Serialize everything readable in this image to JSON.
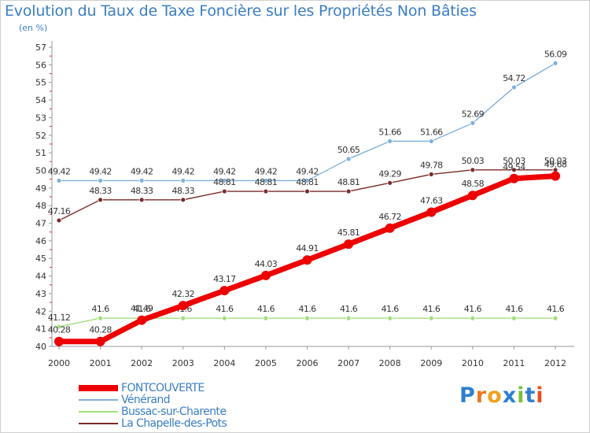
{
  "title": "Evolution du Taux de Taxe Foncière sur les Propriétés Non Bâties",
  "unit": "(en %)",
  "logo": "Proxiti",
  "chart_data": {
    "type": "line",
    "title": "Evolution du Taux de Taxe Foncière sur les Propriétés Non Bâties",
    "ylabel": "(en %)",
    "xlabel": "",
    "x": [
      "2000",
      "2001",
      "2002",
      "2003",
      "2004",
      "2005",
      "2006",
      "2007",
      "2008",
      "2009",
      "2010",
      "2011",
      "2012"
    ],
    "ylim": [
      40,
      57
    ],
    "yticks": [
      40,
      41,
      42,
      43,
      44,
      45,
      46,
      47,
      48,
      49,
      50,
      51,
      52,
      53,
      54,
      55,
      56,
      57
    ],
    "grid": false,
    "legend_position": "bottom-left",
    "series": [
      {
        "name": "FONTCOUVERTE",
        "color": "#ee0000",
        "bold": true,
        "values": [
          40.28,
          40.28,
          41.49,
          42.32,
          43.17,
          44.03,
          44.91,
          45.81,
          46.72,
          47.63,
          48.58,
          49.54,
          49.68
        ],
        "labels": [
          "40.28",
          "40.28",
          "41.49",
          "42.32",
          "43.17",
          "44.03",
          "44.91",
          "45.81",
          "46.72",
          "47.63",
          "48.58",
          "49.54",
          "49.68"
        ]
      },
      {
        "name": "Vénérand",
        "color": "#7fb0de",
        "values": [
          49.42,
          49.42,
          49.42,
          49.42,
          49.42,
          49.42,
          49.42,
          50.65,
          51.66,
          51.66,
          52.69,
          54.72,
          56.09
        ],
        "labels": [
          "49.42",
          "49.42",
          "49.42",
          "49.42",
          "49.42",
          "49.42",
          "49.42",
          "50.65",
          "51.66",
          "51.66",
          "52.69",
          "54.72",
          "56.09"
        ]
      },
      {
        "name": "Bussac-sur-Charente",
        "color": "#a4de7c",
        "values": [
          41.12,
          41.6,
          41.6,
          41.6,
          41.6,
          41.6,
          41.6,
          41.6,
          41.6,
          41.6,
          41.6,
          41.6,
          41.6
        ],
        "labels": [
          "41.12",
          "41.6",
          "41.6",
          "41.6",
          "41.6",
          "41.6",
          "41.6",
          "41.6",
          "41.6",
          "41.6",
          "41.6",
          "41.6",
          "41.6"
        ]
      },
      {
        "name": "La Chapelle-des-Pots",
        "color": "#7a2a2a",
        "values": [
          47.16,
          48.33,
          48.33,
          48.33,
          48.81,
          48.81,
          48.81,
          48.81,
          49.29,
          49.78,
          50.03,
          50.03,
          50.03
        ],
        "labels": [
          "47.16",
          "48.33",
          "48.33",
          "48.33",
          "48.81",
          "48.81",
          "48.81",
          "48.81",
          "49.29",
          "49.78",
          "50.03",
          "50.03",
          "50.03"
        ]
      }
    ]
  }
}
